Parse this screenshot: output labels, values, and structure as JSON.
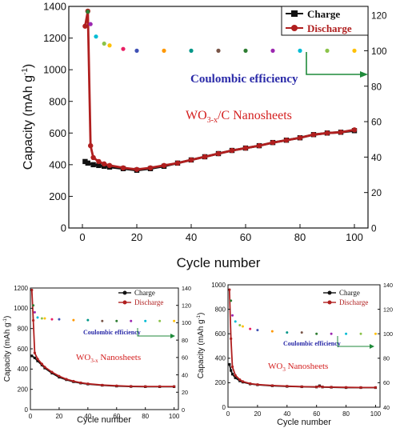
{
  "colors": {
    "charge": "#111111",
    "discharge": "#b01f1f",
    "ce_label": "#2a2aa8",
    "ce_arrow": "#1f8a3a",
    "title_red": "#d42020",
    "ce_dots": [
      "#2e7d32",
      "#9c27b0",
      "#00bcd4",
      "#8bc34a",
      "#ffc107",
      "#e91e63",
      "#3f51b5",
      "#ff9800",
      "#009688",
      "#795548"
    ]
  },
  "chart_data": [
    {
      "id": "main",
      "type": "line",
      "title": "WO3-x/C Nanosheets",
      "xlabel": "Cycle number",
      "ylabel": "Capacity (mAh g-1)",
      "xlim": [
        -5,
        105
      ],
      "ylim": [
        0,
        1400
      ],
      "y2lim": [
        0,
        125
      ],
      "xticks": [
        0,
        20,
        40,
        60,
        80,
        100
      ],
      "yticks": [
        0,
        200,
        400,
        600,
        800,
        1000,
        1200,
        1400
      ],
      "y2ticks": [
        0,
        20,
        40,
        60,
        80,
        100,
        120
      ],
      "legend": [
        "Charge",
        "Discharge"
      ],
      "ce_label": "Coulombic efficiency",
      "series": [
        {
          "name": "Charge",
          "x": [
            1,
            2,
            4,
            6,
            8,
            10,
            15,
            20,
            25,
            30,
            35,
            40,
            45,
            50,
            55,
            60,
            65,
            70,
            75,
            80,
            85,
            90,
            95,
            100
          ],
          "y": [
            420,
            410,
            400,
            395,
            390,
            385,
            375,
            365,
            375,
            390,
            410,
            430,
            450,
            470,
            490,
            505,
            520,
            540,
            555,
            570,
            590,
            600,
            605,
            615
          ]
        },
        {
          "name": "Discharge",
          "x": [
            1,
            2,
            3,
            4,
            6,
            8,
            10,
            15,
            20,
            25,
            30,
            35,
            40,
            45,
            50,
            55,
            60,
            65,
            70,
            75,
            80,
            85,
            90,
            95,
            100
          ],
          "y": [
            1275,
            1370,
            520,
            445,
            420,
            405,
            395,
            380,
            370,
            380,
            395,
            410,
            430,
            450,
            470,
            490,
            505,
            520,
            540,
            555,
            570,
            590,
            600,
            605,
            620
          ]
        },
        {
          "name": "Coulombic efficiency",
          "axis": "y2",
          "x": [
            2,
            3,
            5,
            8,
            10,
            15,
            20,
            30,
            40,
            50,
            60,
            70,
            80,
            90,
            100
          ],
          "y": [
            122,
            115,
            108,
            104,
            103,
            101,
            100,
            100,
            100,
            100,
            100,
            100,
            100,
            100,
            100
          ]
        }
      ]
    },
    {
      "id": "left",
      "type": "line",
      "title": "WO3-x Nanosheets",
      "xlabel": "Cycle number",
      "ylabel": "Capacity (mAh g-1)",
      "xlim": [
        0,
        103
      ],
      "ylim": [
        0,
        1200
      ],
      "y2lim": [
        0,
        140
      ],
      "xticks": [
        0,
        20,
        40,
        60,
        80,
        100
      ],
      "yticks": [
        0,
        200,
        400,
        600,
        800,
        1000,
        1200
      ],
      "y2ticks": [
        0,
        20,
        40,
        60,
        80,
        100,
        120,
        140
      ],
      "legend": [
        "Charge",
        "Discharge"
      ],
      "ce_label": "Coulombic efficiency",
      "series": [
        {
          "name": "Charge",
          "x": [
            1,
            3,
            5,
            8,
            10,
            15,
            20,
            25,
            30,
            35,
            40,
            50,
            60,
            70,
            80,
            90,
            100
          ],
          "y": [
            530,
            510,
            480,
            440,
            410,
            360,
            320,
            295,
            275,
            262,
            252,
            240,
            232,
            228,
            226,
            226,
            226
          ]
        },
        {
          "name": "Discharge",
          "x": [
            1,
            2,
            3,
            5,
            8,
            10,
            15,
            20,
            25,
            30,
            35,
            40,
            50,
            60,
            70,
            80,
            90,
            100
          ],
          "y": [
            1180,
            880,
            560,
            500,
            450,
            420,
            370,
            330,
            300,
            280,
            265,
            255,
            242,
            235,
            230,
            228,
            228,
            228
          ]
        },
        {
          "name": "Coulombic efficiency",
          "axis": "y2",
          "x": [
            2,
            3,
            5,
            8,
            10,
            15,
            20,
            30,
            40,
            50,
            60,
            70,
            80,
            90,
            100
          ],
          "y": [
            120,
            112,
            106,
            105,
            105,
            104,
            104,
            103,
            103,
            102,
            102,
            102,
            102,
            102,
            102
          ]
        }
      ]
    },
    {
      "id": "right",
      "type": "line",
      "title": "WO3 Nanosheets",
      "xlabel": "Cycle number",
      "ylabel": "Capacity (mAh g-1)",
      "xlim": [
        0,
        103
      ],
      "ylim": [
        0,
        1000
      ],
      "y2lim": [
        40,
        140
      ],
      "xticks": [
        0,
        20,
        40,
        60,
        80,
        100
      ],
      "yticks": [
        0,
        200,
        400,
        600,
        800,
        1000
      ],
      "y2ticks": [
        40,
        60,
        80,
        100,
        120,
        140
      ],
      "legend": [
        "Charge",
        "Discharge"
      ],
      "ce_label": "Coulombic efficiency",
      "series": [
        {
          "name": "Charge",
          "x": [
            1,
            2,
            3,
            5,
            8,
            10,
            15,
            20,
            30,
            40,
            50,
            60,
            62,
            64,
            70,
            80,
            90,
            100
          ],
          "y": [
            350,
            300,
            270,
            240,
            215,
            205,
            190,
            183,
            175,
            170,
            167,
            165,
            175,
            165,
            163,
            160,
            160,
            160
          ]
        },
        {
          "name": "Discharge",
          "x": [
            1,
            2,
            3,
            5,
            8,
            10,
            15,
            20,
            30,
            40,
            50,
            60,
            62,
            64,
            70,
            80,
            90,
            100
          ],
          "y": [
            960,
            560,
            330,
            260,
            225,
            210,
            193,
            185,
            177,
            172,
            168,
            166,
            170,
            166,
            164,
            162,
            161,
            161
          ]
        },
        {
          "name": "Coulombic efficiency",
          "axis": "y2",
          "x": [
            2,
            3,
            5,
            8,
            10,
            15,
            20,
            30,
            40,
            50,
            60,
            70,
            80,
            90,
            100
          ],
          "y": [
            127,
            115,
            110,
            107,
            106,
            104,
            103,
            102,
            101,
            101,
            100,
            100,
            100,
            100,
            100
          ]
        }
      ]
    }
  ]
}
